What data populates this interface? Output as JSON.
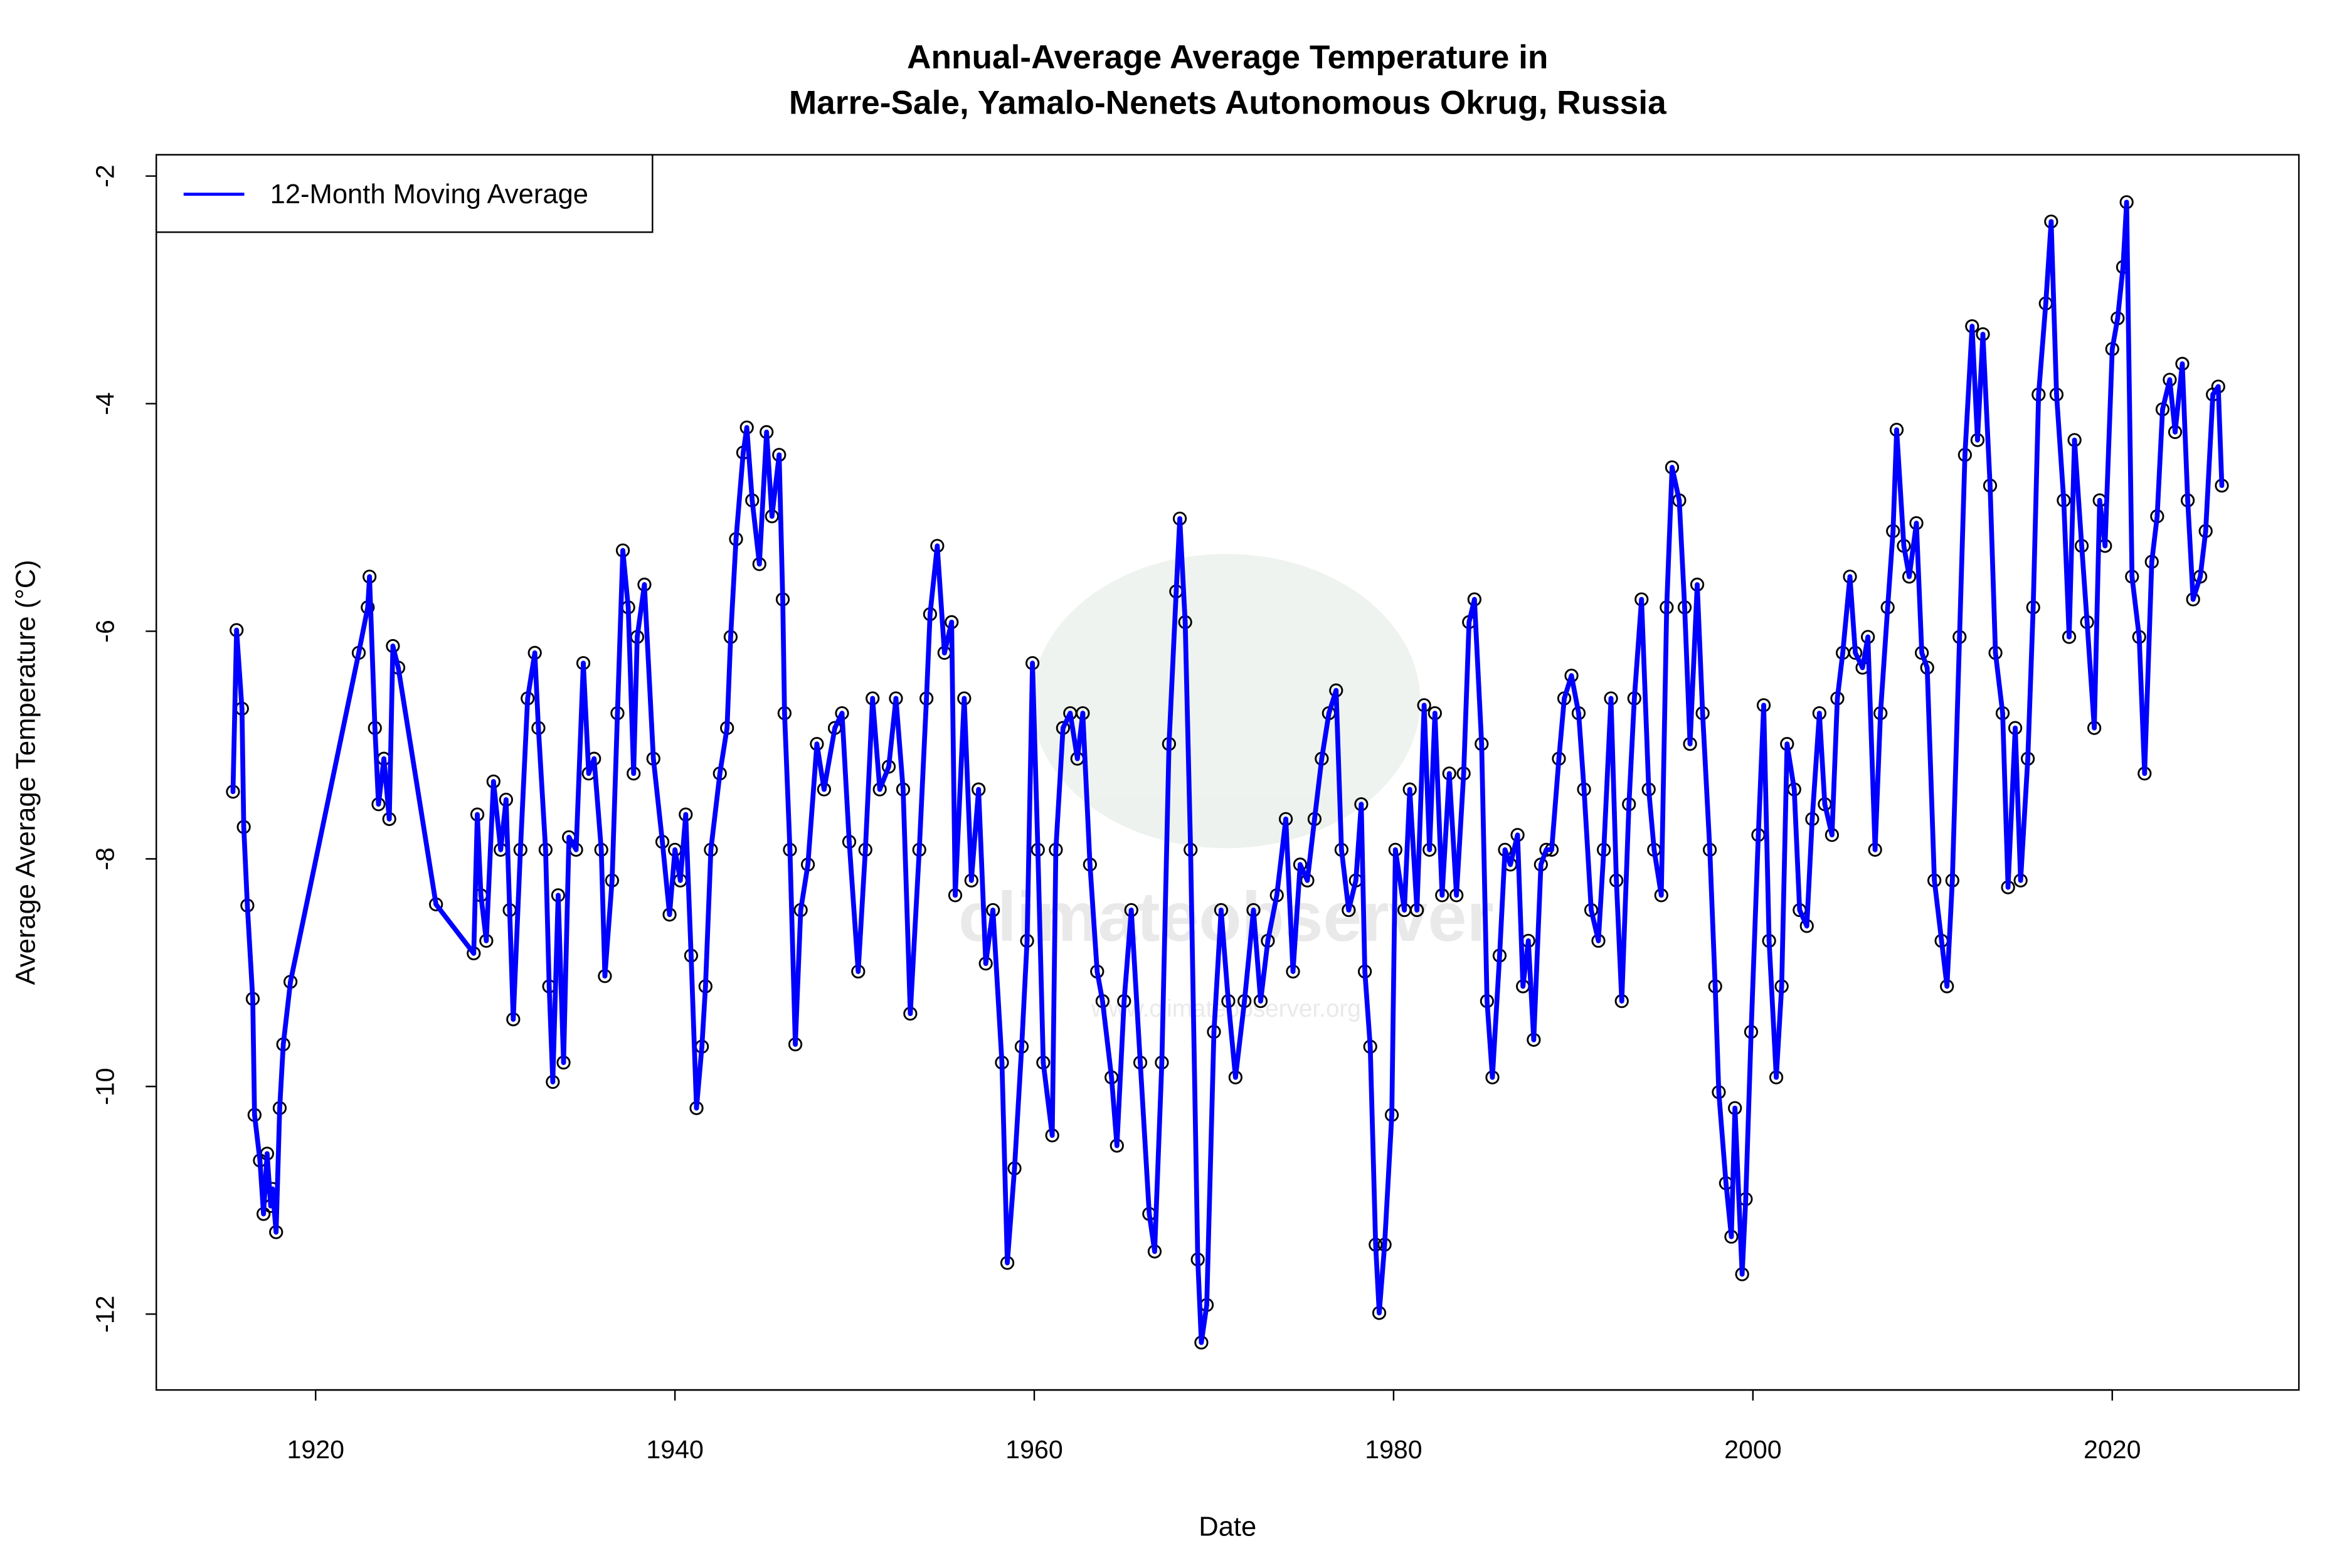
{
  "chart_data": {
    "type": "line",
    "title": "Annual-Average Average Temperature in",
    "subtitle": "Marre-Sale, Yamalo-Nenets Autonomous Okrug, Russia",
    "xlabel": "Date",
    "ylabel": "Average Average Temperature (°C)",
    "xlim": [
      1913,
      2030
    ],
    "ylim": [
      -12.7,
      -1.8
    ],
    "x_ticks": [
      1920,
      1940,
      1960,
      1980,
      2000,
      2020
    ],
    "y_ticks": [
      -2,
      -4,
      -6,
      -8,
      -10,
      -12
    ],
    "grid": false,
    "legend_position": "top-left",
    "watermark": [
      "climateobserver",
      "www.climateobserver.org"
    ],
    "series": [
      {
        "name": "12-Month Moving Average",
        "color": "#0000ff",
        "marker": "open-circle",
        "x": [
          1915.4,
          1915.6,
          1915.9,
          1916.0,
          1916.2,
          1916.5,
          1916.6,
          1916.9,
          1917.1,
          1917.3,
          1917.5,
          1917.6,
          1917.8,
          1918.0,
          1918.2,
          1918.6,
          1922.4,
          1922.9,
          1923.0,
          1923.3,
          1923.5,
          1923.8,
          1924.1,
          1924.3,
          1924.6,
          1926.7,
          1928.8,
          1929.0,
          1929.2,
          1929.5,
          1929.9,
          1930.3,
          1930.6,
          1930.8,
          1931.0,
          1931.4,
          1931.8,
          1932.2,
          1932.4,
          1932.8,
          1933.0,
          1933.2,
          1933.5,
          1933.8,
          1934.1,
          1934.5,
          1934.9,
          1935.2,
          1935.5,
          1935.9,
          1936.1,
          1936.5,
          1936.8,
          1937.1,
          1937.4,
          1937.7,
          1937.9,
          1938.3,
          1938.8,
          1939.3,
          1939.7,
          1940.0,
          1940.3,
          1940.6,
          1940.9,
          1941.2,
          1941.5,
          1941.7,
          1942.0,
          1942.5,
          1942.9,
          1943.1,
          1943.4,
          1943.8,
          1944.0,
          1944.3,
          1944.7,
          1945.1,
          1945.4,
          1945.8,
          1946.0,
          1946.1,
          1946.4,
          1946.7,
          1947.0,
          1947.4,
          1947.9,
          1948.3,
          1948.9,
          1949.3,
          1949.7,
          1950.2,
          1950.6,
          1951.0,
          1951.4,
          1951.9,
          1952.3,
          1952.7,
          1953.1,
          1953.6,
          1954.0,
          1954.2,
          1954.6,
          1955.0,
          1955.4,
          1955.6,
          1956.1,
          1956.5,
          1956.9,
          1957.3,
          1957.7,
          1958.2,
          1958.5,
          1958.9,
          1959.3,
          1959.6,
          1959.9,
          1960.2,
          1960.5,
          1961.0,
          1961.2,
          1961.6,
          1962.0,
          1962.4,
          1962.7,
          1963.1,
          1963.5,
          1963.8,
          1964.3,
          1964.6,
          1965.0,
          1965.4,
          1965.9,
          1966.4,
          1966.7,
          1967.1,
          1967.5,
          1967.9,
          1968.1,
          1968.4,
          1968.7,
          1969.1,
          1969.3,
          1969.6,
          1970.0,
          1970.4,
          1970.8,
          1971.2,
          1971.7,
          1972.2,
          1972.6,
          1973.0,
          1973.5,
          1974.0,
          1974.4,
          1974.8,
          1975.2,
          1975.6,
          1976.0,
          1976.4,
          1976.8,
          1977.1,
          1977.5,
          1977.9,
          1978.2,
          1978.4,
          1978.7,
          1979.0,
          1979.2,
          1979.5,
          1979.9,
          1980.1,
          1980.6,
          1980.9,
          1981.3,
          1981.7,
          1982.0,
          1982.3,
          1982.7,
          1983.1,
          1983.5,
          1983.9,
          1984.2,
          1984.5,
          1984.9,
          1985.2,
          1985.5,
          1985.9,
          1986.2,
          1986.5,
          1986.9,
          1987.2,
          1987.5,
          1987.8,
          1988.2,
          1988.5,
          1988.8,
          1989.2,
          1989.5,
          1989.9,
          1990.3,
          1990.6,
          1991.0,
          1991.4,
          1991.7,
          1992.1,
          1992.4,
          1992.7,
          1993.1,
          1993.4,
          1993.8,
          1994.2,
          1994.5,
          1994.9,
          1995.2,
          1995.5,
          1995.9,
          1996.2,
          1996.5,
          1996.9,
          1997.2,
          1997.6,
          1997.9,
          1998.1,
          1998.5,
          1998.8,
          1999.0,
          1999.4,
          1999.6,
          1999.9,
          2000.3,
          2000.6,
          2000.9,
          2001.3,
          2001.6,
          2001.9,
          2002.3,
          2002.6,
          2003.0,
          2003.3,
          2003.7,
          2004.0,
          2004.4,
          2004.7,
          2005.0,
          2005.4,
          2005.7,
          2006.1,
          2006.4,
          2006.8,
          2007.1,
          2007.5,
          2007.8,
          2008.0,
          2008.4,
          2008.7,
          2009.1,
          2009.4,
          2009.7,
          2010.1,
          2010.5,
          2010.8,
          2011.1,
          2011.5,
          2011.8,
          2012.2,
          2012.5,
          2012.8,
          2013.2,
          2013.5,
          2013.9,
          2014.2,
          2014.6,
          2014.9,
          2015.3,
          2015.6,
          2015.9,
          2016.3,
          2016.6,
          2016.9,
          2017.3,
          2017.6,
          2017.9,
          2018.3,
          2018.6,
          2019.0,
          2019.3,
          2019.6,
          2020.0,
          2020.3,
          2020.6,
          2020.8,
          2021.1,
          2021.5,
          2021.8,
          2022.2,
          2022.5,
          2022.8,
          2023.2,
          2023.5,
          2023.9,
          2024.2,
          2024.5,
          2024.9,
          2025.2,
          2025.6,
          2025.9,
          2026.1
        ],
        "y": [
          -7.41,
          -5.99,
          -6.68,
          -7.72,
          -8.41,
          -9.23,
          -10.25,
          -10.65,
          -11.12,
          -10.59,
          -11.05,
          -10.9,
          -11.28,
          -10.19,
          -9.63,
          -9.08,
          -6.19,
          -5.79,
          -5.52,
          -6.85,
          -7.52,
          -7.12,
          -7.65,
          -6.13,
          -6.32,
          -8.4,
          -8.83,
          -7.61,
          -8.32,
          -8.72,
          -7.32,
          -7.92,
          -7.48,
          -8.45,
          -9.41,
          -7.92,
          -6.59,
          -6.19,
          -6.85,
          -7.92,
          -9.12,
          -9.96,
          -8.32,
          -9.79,
          -7.81,
          -7.92,
          -6.28,
          -7.25,
          -7.12,
          -7.92,
          -9.03,
          -8.19,
          -6.72,
          -5.29,
          -5.79,
          -7.25,
          -6.05,
          -5.59,
          -7.12,
          -7.85,
          -8.49,
          -7.92,
          -8.19,
          -7.61,
          -8.85,
          -10.19,
          -9.65,
          -9.12,
          -7.92,
          -7.25,
          -6.85,
          -6.05,
          -5.19,
          -4.43,
          -4.21,
          -4.85,
          -5.41,
          -4.25,
          -4.99,
          -4.45,
          -5.72,
          -6.72,
          -7.92,
          -9.63,
          -8.45,
          -8.05,
          -6.99,
          -7.39,
          -6.85,
          -6.72,
          -7.85,
          -8.99,
          -7.92,
          -6.59,
          -7.39,
          -7.19,
          -6.59,
          -7.39,
          -9.36,
          -7.92,
          -6.59,
          -5.85,
          -5.25,
          -6.19,
          -5.92,
          -8.32,
          -6.59,
          -8.19,
          -7.39,
          -8.92,
          -8.45,
          -9.79,
          -11.55,
          -10.72,
          -9.65,
          -8.72,
          -6.28,
          -7.92,
          -9.79,
          -10.43,
          -7.92,
          -6.85,
          -6.72,
          -7.12,
          -6.72,
          -8.05,
          -8.99,
          -9.25,
          -9.92,
          -10.52,
          -9.25,
          -8.45,
          -9.79,
          -11.12,
          -11.45,
          -9.79,
          -6.99,
          -5.65,
          -5.01,
          -5.92,
          -7.92,
          -11.52,
          -12.25,
          -11.92,
          -9.52,
          -8.45,
          -9.25,
          -9.92,
          -9.25,
          -8.45,
          -9.25,
          -8.72,
          -8.32,
          -7.65,
          -8.99,
          -8.05,
          -8.19,
          -7.65,
          -7.12,
          -6.72,
          -6.52,
          -7.92,
          -8.45,
          -8.19,
          -7.52,
          -8.99,
          -9.65,
          -11.39,
          -11.99,
          -11.39,
          -10.25,
          -7.92,
          -8.45,
          -7.39,
          -8.45,
          -6.65,
          -7.92,
          -6.72,
          -8.32,
          -7.25,
          -8.32,
          -7.25,
          -5.92,
          -5.72,
          -6.99,
          -9.25,
          -9.92,
          -8.85,
          -7.92,
          -8.05,
          -7.79,
          -9.12,
          -8.72,
          -9.59,
          -8.05,
          -7.92,
          -7.92,
          -7.12,
          -6.59,
          -6.39,
          -6.72,
          -7.39,
          -8.45,
          -8.72,
          -7.92,
          -6.59,
          -8.19,
          -9.25,
          -7.52,
          -6.59,
          -5.72,
          -7.39,
          -7.92,
          -8.32,
          -5.79,
          -4.56,
          -4.85,
          -5.79,
          -6.99,
          -5.59,
          -6.72,
          -7.92,
          -9.12,
          -10.05,
          -10.85,
          -11.32,
          -10.19,
          -11.65,
          -10.99,
          -9.52,
          -7.79,
          -6.65,
          -8.72,
          -9.92,
          -9.12,
          -6.99,
          -7.39,
          -8.45,
          -8.59,
          -7.65,
          -6.72,
          -7.52,
          -7.79,
          -6.59,
          -6.19,
          -5.52,
          -6.19,
          -6.32,
          -6.05,
          -7.92,
          -6.72,
          -5.79,
          -5.12,
          -4.23,
          -5.25,
          -5.52,
          -5.05,
          -6.19,
          -6.32,
          -8.19,
          -8.72,
          -9.12,
          -8.19,
          -6.05,
          -4.45,
          -3.32,
          -4.32,
          -3.39,
          -4.72,
          -6.19,
          -6.72,
          -8.25,
          -6.85,
          -8.19,
          -7.12,
          -5.79,
          -3.92,
          -3.12,
          -2.4,
          -3.92,
          -4.85,
          -6.05,
          -4.32,
          -5.25,
          -5.92,
          -6.85,
          -4.85,
          -5.25,
          -3.52,
          -3.25,
          -2.8,
          -2.23,
          -5.52,
          -6.05,
          -7.25,
          -5.39,
          -4.99,
          -4.05,
          -3.79,
          -4.25,
          -3.65,
          -4.85,
          -5.72,
          -5.52,
          -5.12,
          -3.92,
          -3.85,
          -4.72
        ]
      }
    ]
  }
}
